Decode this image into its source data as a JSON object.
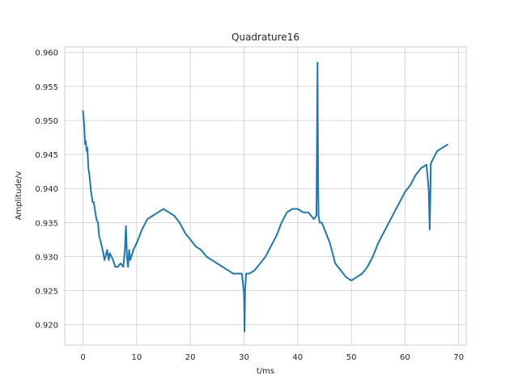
{
  "chart_data": {
    "type": "line",
    "title": "Quadrature16",
    "xlabel": "t/ms",
    "ylabel": "Amplitude/v",
    "xlim": [
      -3.4,
      71.4
    ],
    "ylim": [
      0.917,
      0.9608
    ],
    "xticks": [
      0,
      10,
      20,
      30,
      40,
      50,
      60,
      70
    ],
    "xtick_labels": [
      "0",
      "10",
      "20",
      "30",
      "40",
      "50",
      "60",
      "70"
    ],
    "yticks": [
      0.92,
      0.925,
      0.93,
      0.935,
      0.94,
      0.945,
      0.95,
      0.955,
      0.96
    ],
    "ytick_labels": [
      "0.920",
      "0.925",
      "0.930",
      "0.935",
      "0.940",
      "0.945",
      "0.950",
      "0.955",
      "0.960"
    ],
    "grid": true,
    "legend": "none",
    "series": [
      {
        "color": "#1f77b4",
        "x": [
          0,
          0.2,
          0.4,
          0.5,
          0.7,
          0.8,
          1.0,
          1.2,
          1.5,
          1.8,
          2.0,
          2.2,
          2.5,
          2.8,
          3.0,
          3.2,
          3.5,
          3.8,
          4.0,
          4.2,
          4.5,
          4.8,
          5.0,
          5.3,
          5.6,
          6.0,
          6.5,
          7.0,
          7.5,
          7.8,
          8.0,
          8.2,
          8.4,
          8.6,
          8.8,
          9.0,
          9.2,
          9.4,
          10.0,
          11.0,
          12.0,
          13.0,
          14.0,
          15.0,
          16.0,
          17.0,
          18.0,
          19.0,
          20.0,
          21.0,
          22.0,
          23.0,
          24.0,
          25.0,
          26.0,
          27.0,
          28.0,
          29.0,
          29.6,
          30.0,
          30.1,
          30.2,
          30.4,
          31.0,
          32.0,
          33.0,
          34.0,
          35.0,
          36.0,
          37.0,
          38.0,
          39.0,
          40.0,
          41.0,
          42.0,
          43.0,
          43.5,
          43.7,
          43.8,
          43.9,
          44.1,
          44.5,
          45.0,
          46.0,
          47.0,
          48.0,
          49.0,
          50.0,
          51.0,
          52.0,
          53.0,
          54.0,
          55.0,
          56.0,
          57.0,
          58.0,
          59.0,
          60.0,
          61.0,
          62.0,
          63.0,
          64.0,
          64.4,
          64.6,
          64.7,
          64.8,
          65.0,
          66.0,
          67.0,
          68.0
        ],
        "y": [
          0.9515,
          0.9495,
          0.9465,
          0.947,
          0.9455,
          0.946,
          0.943,
          0.942,
          0.9395,
          0.938,
          0.938,
          0.937,
          0.9355,
          0.935,
          0.933,
          0.9325,
          0.9315,
          0.9305,
          0.9295,
          0.93,
          0.931,
          0.9295,
          0.9305,
          0.93,
          0.9295,
          0.9285,
          0.9285,
          0.929,
          0.9285,
          0.931,
          0.9345,
          0.93,
          0.9285,
          0.931,
          0.9295,
          0.93,
          0.9305,
          0.931,
          0.932,
          0.934,
          0.9355,
          0.936,
          0.9365,
          0.937,
          0.9365,
          0.936,
          0.935,
          0.9335,
          0.9325,
          0.9315,
          0.931,
          0.93,
          0.9295,
          0.929,
          0.9285,
          0.928,
          0.9275,
          0.9275,
          0.9275,
          0.9245,
          0.919,
          0.925,
          0.9275,
          0.9275,
          0.928,
          0.929,
          0.93,
          0.9315,
          0.933,
          0.935,
          0.9365,
          0.937,
          0.937,
          0.9365,
          0.9365,
          0.9355,
          0.936,
          0.9585,
          0.942,
          0.936,
          0.935,
          0.935,
          0.934,
          0.932,
          0.929,
          0.928,
          0.927,
          0.9265,
          0.927,
          0.9275,
          0.9285,
          0.93,
          0.932,
          0.9335,
          0.935,
          0.9365,
          0.938,
          0.9395,
          0.9405,
          0.942,
          0.943,
          0.9435,
          0.94,
          0.934,
          0.938,
          0.9435,
          0.944,
          0.9455,
          0.946,
          0.9465
        ]
      }
    ]
  }
}
